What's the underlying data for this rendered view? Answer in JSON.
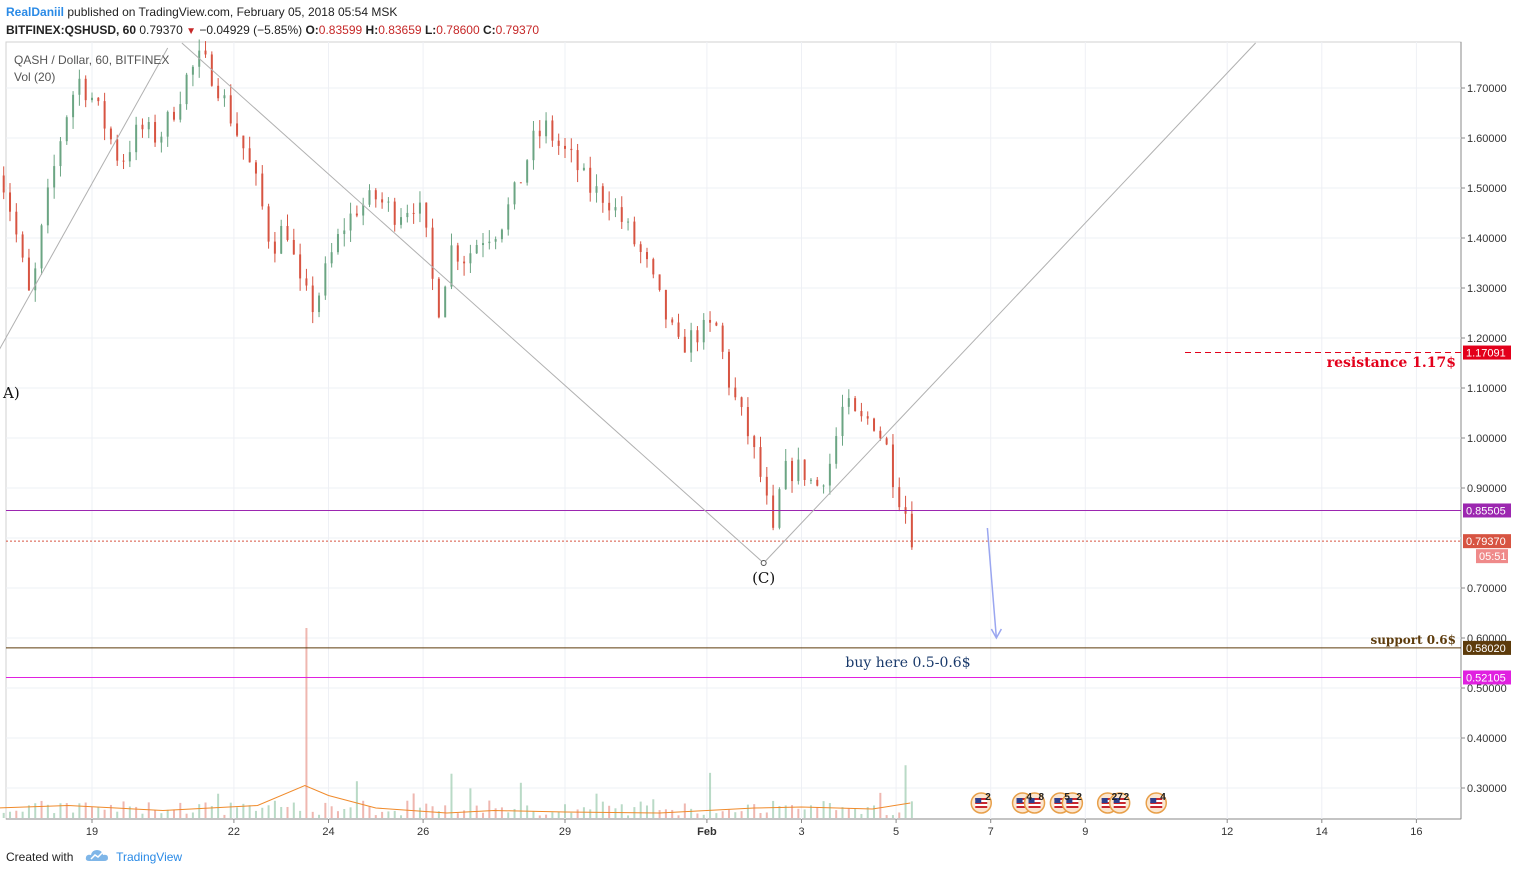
{
  "header": {
    "author": "RealDaniil",
    "published_text": "published on TradingView.com, February 05, 2018 05:54 MSK",
    "symbol": "BITFINEX:QSHUSD, 60",
    "last": "0.79370",
    "change": "−0.04929 (−5.85%)",
    "open_label": "O:",
    "open": "0.83599",
    "high_label": "H:",
    "high": "0.83659",
    "low_label": "L:",
    "low": "0.78600",
    "close_label": "C:",
    "close": "0.79370"
  },
  "legend": {
    "series_title": "QASH / Dollar, 60, BITFINEX",
    "volume_title": "Vol (20)"
  },
  "footer": {
    "created_with": "Created with",
    "brand": "TradingView"
  },
  "colors": {
    "up": "#6ba583",
    "down": "#d75442",
    "trendline": "#b0b0b0",
    "resistance": "#e3001b",
    "support_line": "#5d3b0b",
    "magenta_line": "#e020e0",
    "purple_line": "#9c27b0",
    "arrow": "#9aa6f0",
    "vol_ma": "#f08a2a"
  },
  "chart_data": {
    "type": "candlestick",
    "symbol": "QSHUSD",
    "timeframe": "60",
    "ylim": [
      0.23,
      1.75
    ],
    "y_ticks": [
      "1.70000",
      "1.60000",
      "1.50000",
      "1.40000",
      "1.30000",
      "1.20000",
      "1.10000",
      "1.00000",
      "0.90000",
      "0.70000",
      "0.60000",
      "0.50000",
      "0.40000",
      "0.30000"
    ],
    "y_tick_values": [
      1.7,
      1.6,
      1.5,
      1.4,
      1.3,
      1.2,
      1.1,
      1.0,
      0.9,
      0.7,
      0.6,
      0.5,
      0.4,
      0.3
    ],
    "x_ticks": [
      "19",
      "22",
      "24",
      "26",
      "29",
      "Feb",
      "3",
      "5",
      "7",
      "9",
      "12",
      "14",
      "16"
    ],
    "x_tick_days": [
      19,
      22,
      24,
      26,
      29,
      32,
      34,
      36,
      38,
      40,
      43,
      45,
      47
    ],
    "price_path": [
      [
        17.0,
        1.55
      ],
      [
        17.3,
        1.45
      ],
      [
        17.7,
        1.27
      ],
      [
        18.0,
        1.45
      ],
      [
        18.4,
        1.63
      ],
      [
        18.7,
        1.72
      ],
      [
        19.0,
        1.68
      ],
      [
        19.3,
        1.62
      ],
      [
        19.6,
        1.55
      ],
      [
        20.0,
        1.62
      ],
      [
        20.4,
        1.6
      ],
      [
        20.7,
        1.65
      ],
      [
        21.0,
        1.72
      ],
      [
        21.3,
        1.76
      ],
      [
        21.6,
        1.72
      ],
      [
        21.9,
        1.65
      ],
      [
        22.2,
        1.58
      ],
      [
        22.5,
        1.5
      ],
      [
        22.8,
        1.38
      ],
      [
        23.1,
        1.43
      ],
      [
        23.4,
        1.3
      ],
      [
        23.7,
        1.26
      ],
      [
        24.0,
        1.35
      ],
      [
        24.3,
        1.42
      ],
      [
        24.6,
        1.46
      ],
      [
        25.0,
        1.48
      ],
      [
        25.4,
        1.45
      ],
      [
        25.8,
        1.47
      ],
      [
        26.0,
        1.44
      ],
      [
        26.3,
        1.25
      ],
      [
        26.6,
        1.38
      ],
      [
        26.9,
        1.36
      ],
      [
        27.2,
        1.4
      ],
      [
        27.6,
        1.42
      ],
      [
        28.0,
        1.5
      ],
      [
        28.3,
        1.59
      ],
      [
        28.6,
        1.62
      ],
      [
        28.9,
        1.58
      ],
      [
        29.2,
        1.55
      ],
      [
        29.5,
        1.5
      ],
      [
        29.9,
        1.48
      ],
      [
        30.3,
        1.42
      ],
      [
        30.7,
        1.35
      ],
      [
        31.1,
        1.25
      ],
      [
        31.4,
        1.18
      ],
      [
        31.8,
        1.21
      ],
      [
        32.2,
        1.22
      ],
      [
        32.5,
        1.1
      ],
      [
        32.9,
        1.0
      ],
      [
        33.2,
        0.9
      ],
      [
        33.4,
        0.8
      ],
      [
        33.6,
        0.93
      ],
      [
        34.0,
        0.94
      ],
      [
        34.3,
        0.9
      ],
      [
        34.6,
        0.95
      ],
      [
        34.9,
        1.07
      ],
      [
        35.2,
        1.03
      ],
      [
        35.5,
        1.04
      ],
      [
        35.8,
        0.98
      ],
      [
        36.0,
        0.9
      ],
      [
        36.3,
        0.83
      ],
      [
        36.35,
        0.7937
      ]
    ],
    "volume_ma": [
      [
        17.0,
        0.26
      ],
      [
        18.5,
        0.265
      ],
      [
        20.5,
        0.255
      ],
      [
        22.5,
        0.265
      ],
      [
        23.5,
        0.305
      ],
      [
        24.0,
        0.285
      ],
      [
        25.0,
        0.26
      ],
      [
        26.5,
        0.25
      ],
      [
        27.5,
        0.255
      ],
      [
        29.0,
        0.252
      ],
      [
        31.0,
        0.25
      ],
      [
        33.0,
        0.26
      ],
      [
        34.0,
        0.262
      ],
      [
        35.5,
        0.258
      ],
      [
        36.3,
        0.27
      ]
    ],
    "volume_spike": {
      "day": 23.5,
      "value": 0.62
    },
    "horizontal_levels": [
      {
        "label": "0.85505",
        "value": 0.85505,
        "style": "purple"
      },
      {
        "label": "0.79370",
        "value": 0.7937,
        "style": "current",
        "countdown": "05:51"
      },
      {
        "label": "0.58020",
        "value": 0.5802,
        "style": "support"
      },
      {
        "label": "0.52105",
        "value": 0.52105,
        "style": "magenta"
      },
      {
        "label": "1.17091",
        "value": 1.17091,
        "style": "resistance"
      }
    ],
    "trendlines": [
      {
        "from": [
          17.0,
          1.17
        ],
        "to": [
          20.6,
          1.78
        ]
      },
      {
        "from": [
          20.9,
          1.79
        ],
        "to": [
          33.2,
          0.75
        ]
      },
      {
        "from": [
          33.2,
          0.75
        ],
        "to": [
          43.6,
          1.79
        ]
      }
    ],
    "annotations": [
      {
        "text": "resistance 1.17$",
        "price": 1.15,
        "day": 46.8
      },
      {
        "text": "support 0.6$",
        "price": 0.596,
        "day": 46.8
      },
      {
        "text": "buy here 0.5-0.6$",
        "price": 0.552,
        "day": 37.8
      },
      {
        "text": "(C)",
        "price": 0.72,
        "day": 33.2
      },
      {
        "text": "A)",
        "price": 1.09,
        "day": 17.1
      }
    ],
    "forecast_arrow": {
      "from": [
        37.93,
        0.82
      ],
      "to": [
        38.12,
        0.6
      ]
    },
    "events": [
      {
        "day": 37.8,
        "badges": [
          "2"
        ]
      },
      {
        "day": 38.8,
        "badges": [
          "4",
          "8"
        ]
      },
      {
        "day": 39.6,
        "badges": [
          "5",
          "2"
        ]
      },
      {
        "day": 40.6,
        "badges": [
          "27",
          "2"
        ]
      },
      {
        "day": 41.5,
        "badges": [
          "4"
        ]
      }
    ]
  }
}
